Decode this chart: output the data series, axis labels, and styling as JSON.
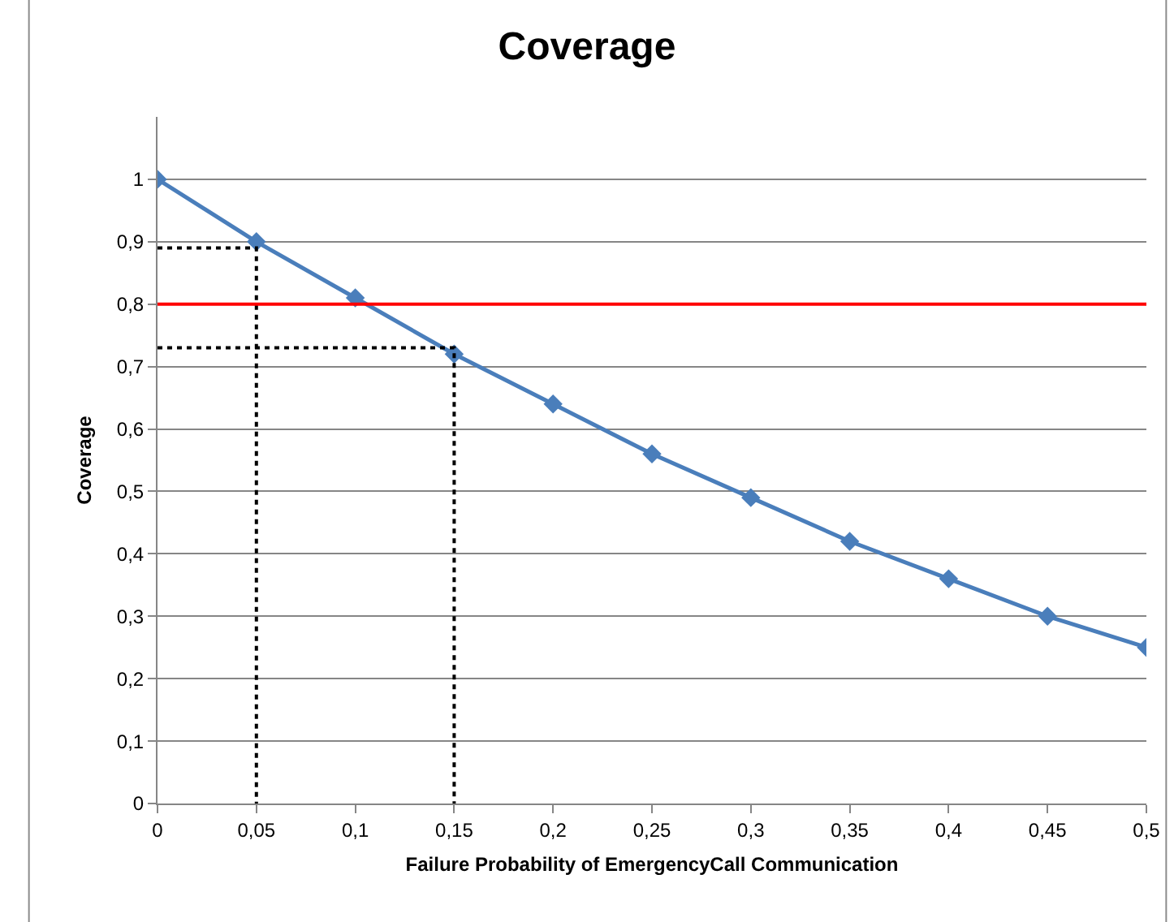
{
  "chart_data": {
    "type": "line",
    "title": "Coverage",
    "xlabel": "Failure Probability of EmergencyCall Communication",
    "ylabel": "Coverage",
    "x": [
      0,
      0.05,
      0.1,
      0.15,
      0.2,
      0.25,
      0.3,
      0.35,
      0.4,
      0.45,
      0.5
    ],
    "series": [
      {
        "color": "#4a7ebb",
        "values": [
          1,
          0.9,
          0.81,
          0.72,
          0.64,
          0.56,
          0.49,
          0.42,
          0.36,
          0.3,
          0.25
        ],
        "marker": "diamond",
        "line_style": "solid"
      },
      {
        "type": "line",
        "color": "#000000",
        "x": [
          0,
          0.05,
          0.05
        ],
        "values": [
          0.89,
          0.89,
          0
        ],
        "marker": "none",
        "line_style": "dotted"
      },
      {
        "type": "line",
        "color": "#000000",
        "x": [
          0,
          0.15,
          0.15
        ],
        "values": [
          0.73,
          0.73,
          0
        ],
        "marker": "none",
        "line_style": "dotted"
      }
    ],
    "ref_lines": [
      {
        "axis": "y",
        "value": 0.8,
        "color": "#ff0000"
      }
    ],
    "xlim": [
      0,
      0.5
    ],
    "xticks": [
      0,
      {
        "value": 0.05,
        "label": "0,05"
      },
      {
        "value": 0.1,
        "label": "0,1"
      },
      {
        "value": 0.15,
        "label": "0,15"
      },
      {
        "value": 0.2,
        "label": "0,2"
      },
      {
        "value": 0.25,
        "label": "0,25"
      },
      {
        "value": 0.3,
        "label": "0,3"
      },
      {
        "value": 0.35,
        "label": "0,35"
      },
      {
        "value": 0.4,
        "label": "0,4"
      },
      {
        "value": 0.45,
        "label": "0,45"
      },
      {
        "value": 0.5,
        "label": "0,5"
      }
    ],
    "ylim": [
      0,
      1.1
    ],
    "yticks": [
      0,
      {
        "value": 0.1,
        "label": "0,1"
      },
      {
        "value": 0.2,
        "label": "0,2"
      },
      {
        "value": 0.3,
        "label": "0,3"
      },
      {
        "value": 0.4,
        "label": "0,4"
      },
      {
        "value": 0.5,
        "label": "0,5"
      },
      {
        "value": 0.6,
        "label": "0,6"
      },
      {
        "value": 0.7,
        "label": "0,7"
      },
      {
        "value": 0.8,
        "label": "0,8"
      },
      {
        "value": 0.9,
        "label": "0,9"
      },
      1
    ],
    "grid": "y"
  }
}
